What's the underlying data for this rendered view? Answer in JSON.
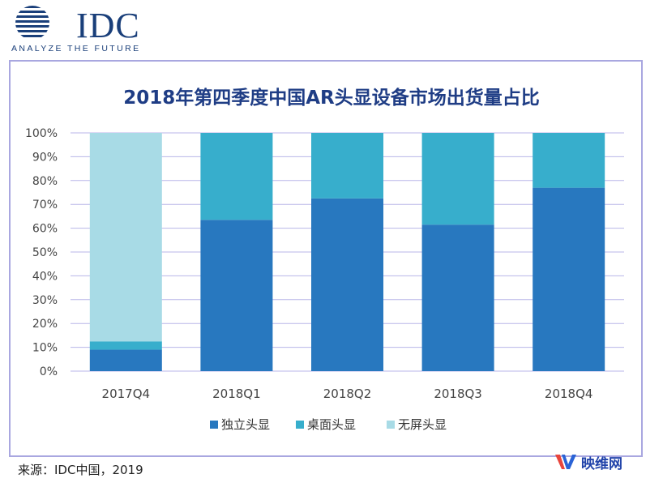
{
  "logo": {
    "name": "IDC",
    "tagline": "ANALYZE THE FUTURE"
  },
  "chart_data": {
    "type": "bar",
    "stacked": true,
    "title": "2018年第四季度中国AR头显设备市场出货量占比",
    "xlabel": "",
    "ylabel": "",
    "categories": [
      "2017Q4",
      "2018Q1",
      "2018Q2",
      "2018Q3",
      "2018Q4"
    ],
    "series": [
      {
        "name": "独立头显",
        "color": "#2878bf",
        "values": [
          9,
          63.5,
          72.5,
          61.5,
          77
        ]
      },
      {
        "name": "桌面头显",
        "color": "#37aecc",
        "values": [
          3.5,
          36.5,
          27.5,
          38.5,
          23
        ]
      },
      {
        "name": "无屏头显",
        "color": "#a8dbe6",
        "values": [
          87.5,
          0,
          0,
          0,
          0
        ]
      }
    ],
    "ylim": [
      0,
      100
    ],
    "yticks": [
      "0%",
      "10%",
      "20%",
      "30%",
      "40%",
      "50%",
      "60%",
      "70%",
      "80%",
      "90%",
      "100%"
    ],
    "grid": true,
    "gridColor": "#b8b6e8",
    "legend": "bottom"
  },
  "source": "来源：IDC中国，2019",
  "watermark": {
    "text": "映维网",
    "color": "#2244aa"
  }
}
